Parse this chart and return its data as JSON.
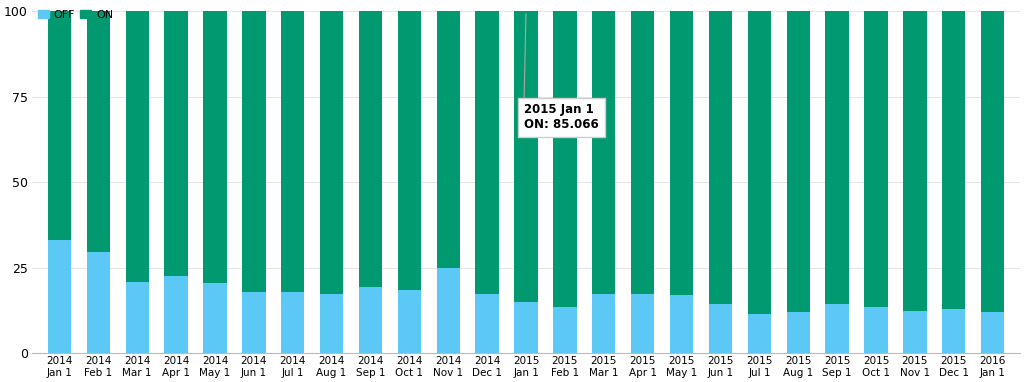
{
  "categories": [
    "2014\nJan 1",
    "2014\nFeb 1",
    "2014\nMar 1",
    "2014\nApr 1",
    "2014\nMay 1",
    "2014\nJun 1",
    "2014\nJul 1",
    "2014\nAug 1",
    "2014\nSep 1",
    "2014\nOct 1",
    "2014\nNov 1",
    "2014\nDec 1",
    "2015\nJan 1",
    "2015\nFeb 1",
    "2015\nMar 1",
    "2015\nApr 1",
    "2015\nMay 1",
    "2015\nJun 1",
    "2015\nJul 1",
    "2015\nAug 1",
    "2015\nSep 1",
    "2015\nOct 1",
    "2015\nNov 1",
    "2015\nDec 1",
    "2016\nJan 1"
  ],
  "off_values": [
    33.0,
    29.5,
    21.0,
    22.5,
    20.5,
    18.0,
    18.0,
    17.5,
    19.5,
    18.5,
    25.0,
    17.5,
    14.934,
    13.5,
    17.5,
    17.5,
    17.0,
    14.5,
    11.5,
    12.0,
    14.5,
    13.5,
    12.5,
    13.0,
    12.0
  ],
  "on_values": [
    67.0,
    70.5,
    79.0,
    77.5,
    79.5,
    82.0,
    82.0,
    82.5,
    80.5,
    81.5,
    75.0,
    82.5,
    85.066,
    86.5,
    82.5,
    82.5,
    83.0,
    85.5,
    88.5,
    88.0,
    85.5,
    86.5,
    87.5,
    87.0,
    88.0
  ],
  "off_color": "#5BC8F5",
  "on_color": "#009970",
  "background_color": "#ffffff",
  "bar_width": 0.6,
  "ylim": [
    0,
    102
  ],
  "yticks": [
    0,
    25,
    50,
    75,
    100
  ],
  "legend_labels": [
    "OFF",
    "ON"
  ],
  "tooltip_bar_index": 12,
  "tooltip_text_line1": "2015 Jan 1",
  "tooltip_text_line2_prefix": "ON: ",
  "tooltip_text_line2_value": "85.066"
}
